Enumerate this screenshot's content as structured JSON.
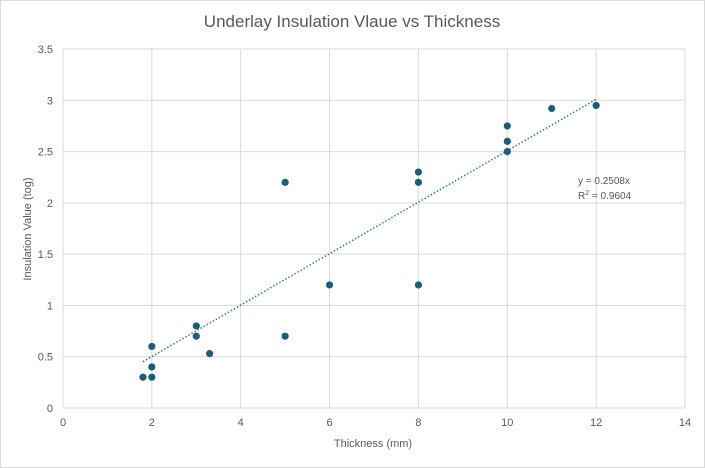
{
  "chart_data": {
    "type": "scatter",
    "title": "Underlay Insulation Vlaue vs Thickness",
    "xlabel": "Thickness (mm)",
    "ylabel": "Insulation Value (tog)",
    "xlim": [
      0,
      14
    ],
    "ylim": [
      0,
      3.5
    ],
    "x_ticks": [
      "0",
      "2",
      "4",
      "6",
      "8",
      "10",
      "12",
      "14"
    ],
    "y_ticks": [
      "0",
      "0.5",
      "1",
      "1.5",
      "2",
      "2.5",
      "3",
      "3.5"
    ],
    "grid": true,
    "legend": "none",
    "marker_color": "#1f5c7a",
    "trendline_color": "#2e75b6",
    "points": [
      {
        "x": 1.8,
        "y": 0.3
      },
      {
        "x": 2,
        "y": 0.3
      },
      {
        "x": 2,
        "y": 0.4
      },
      {
        "x": 2,
        "y": 0.6
      },
      {
        "x": 3,
        "y": 0.7
      },
      {
        "x": 3,
        "y": 0.8
      },
      {
        "x": 3.3,
        "y": 0.53
      },
      {
        "x": 5,
        "y": 0.7
      },
      {
        "x": 5,
        "y": 2.2
      },
      {
        "x": 6,
        "y": 1.2
      },
      {
        "x": 8,
        "y": 1.2
      },
      {
        "x": 8,
        "y": 2.2
      },
      {
        "x": 8,
        "y": 2.3
      },
      {
        "x": 10,
        "y": 2.5
      },
      {
        "x": 10,
        "y": 2.6
      },
      {
        "x": 10,
        "y": 2.75
      },
      {
        "x": 11,
        "y": 2.92
      },
      {
        "x": 12,
        "y": 2.95
      }
    ],
    "trendline": {
      "slope": 0.2508,
      "x_start": 1.8,
      "x_end": 12
    },
    "equation_label": "y = 0.2508x",
    "r2_prefix": "R",
    "r2_superscript": "2",
    "r2_value": " = 0.9604"
  }
}
